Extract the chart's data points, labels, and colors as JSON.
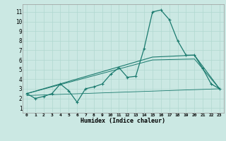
{
  "xlabel": "Humidex (Indice chaleur)",
  "background_color": "#cbe8e3",
  "grid_color": "#b0d8d0",
  "line_color": "#1a7a6e",
  "x_ticks": [
    0,
    1,
    2,
    3,
    4,
    5,
    6,
    7,
    8,
    9,
    10,
    11,
    12,
    13,
    14,
    15,
    16,
    17,
    18,
    19,
    20,
    21,
    22,
    23
  ],
  "y_ticks": [
    1,
    2,
    3,
    4,
    5,
    6,
    7,
    8,
    9,
    10,
    11
  ],
  "xlim": [
    -0.5,
    23.5
  ],
  "ylim": [
    0.5,
    11.8
  ],
  "series1_x": [
    0,
    1,
    2,
    3,
    4,
    5,
    6,
    7,
    8,
    9,
    10,
    11,
    12,
    13,
    14,
    15,
    16,
    17,
    18,
    19,
    20,
    21,
    22,
    23
  ],
  "series1_y": [
    2.5,
    2.0,
    2.2,
    2.5,
    3.5,
    2.8,
    1.6,
    3.0,
    3.2,
    3.5,
    4.5,
    5.2,
    4.2,
    4.3,
    7.2,
    11.0,
    11.2,
    10.2,
    8.0,
    6.5,
    6.5,
    5.1,
    3.5,
    3.0
  ],
  "series2_x": [
    0,
    15,
    20,
    23
  ],
  "series2_y": [
    2.5,
    6.3,
    6.5,
    3.0
  ],
  "series3_x": [
    0,
    15,
    20,
    23
  ],
  "series3_y": [
    2.5,
    6.0,
    6.1,
    3.0
  ],
  "series4_x": [
    0,
    23
  ],
  "series4_y": [
    2.3,
    3.0
  ]
}
